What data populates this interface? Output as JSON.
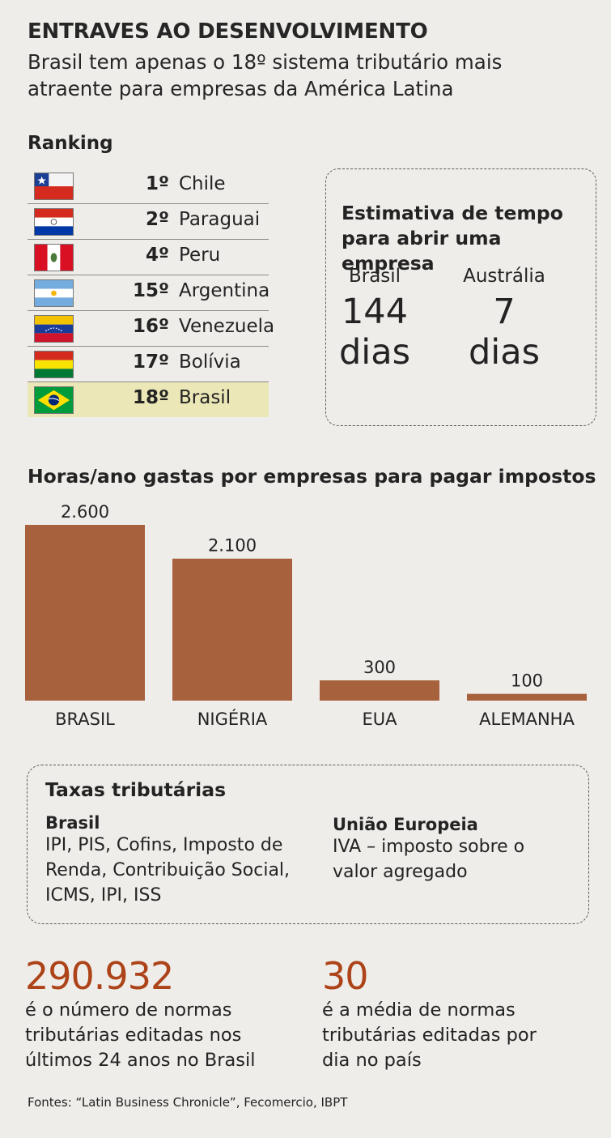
{
  "header": {
    "headline": "ENTRAVES AO DESENVOLVIMENTO",
    "subtitle": "Brasil tem apenas o 18º sistema tributário mais atraente para empresas da América Latina"
  },
  "ranking": {
    "label": "Ranking",
    "rows": [
      {
        "position": "1º",
        "country": "Chile",
        "flag": "chile-flag-icon"
      },
      {
        "position": "2º",
        "country": "Paraguai",
        "flag": "paraguay-flag-icon"
      },
      {
        "position": "4º",
        "country": "Peru",
        "flag": "peru-flag-icon"
      },
      {
        "position": "15º",
        "country": "Argentina",
        "flag": "argentina-flag-icon"
      },
      {
        "position": "16º",
        "country": "Venezuela",
        "flag": "venezuela-flag-icon"
      },
      {
        "position": "17º",
        "country": "Bolívia",
        "flag": "bolivia-flag-icon"
      },
      {
        "position": "18º",
        "country": "Brasil",
        "flag": "brazil-flag-icon",
        "highlight": true
      }
    ]
  },
  "estimate": {
    "title": "Estimativa de tempo para abrir uma empresa",
    "brasil": {
      "country": "Brasil",
      "value": "144",
      "unit": "dias"
    },
    "australia": {
      "country": "Austrália",
      "value": "7",
      "unit": "dias"
    }
  },
  "chart_data": {
    "type": "bar",
    "title": "Horas/ano gastas por empresas para pagar impostos",
    "categories": [
      "BRASIL",
      "NIGÉRIA",
      "EUA",
      "ALEMANHA"
    ],
    "values": [
      2600,
      2100,
      300,
      100
    ],
    "value_labels": [
      "2.600",
      "2.100",
      "300",
      "100"
    ],
    "bar_color": "#a8613d",
    "ylim": [
      0,
      2600
    ]
  },
  "taxes": {
    "title": "Taxas tributárias",
    "brasil": {
      "heading": "Brasil",
      "lines": [
        "IPI, PIS, Cofins, Imposto de",
        "Renda, Contribuição Social,",
        "ICMS, IPI, ISS"
      ]
    },
    "ue": {
      "heading": "União Europeia",
      "lines": [
        "IVA – imposto sobre o",
        "valor agregado"
      ]
    }
  },
  "facts": [
    {
      "number": "290.932",
      "lines": [
        "é o número de normas",
        "tributárias editadas nos",
        "últimos 24 anos no Brasil"
      ]
    },
    {
      "number": "30",
      "lines": [
        "é a média de normas",
        "tributárias editadas por",
        "dia no país"
      ]
    }
  ],
  "accent_color": "#ad4318",
  "sources": "Fontes: “Latin Business Chronicle”, Fecomercio, IBPT"
}
